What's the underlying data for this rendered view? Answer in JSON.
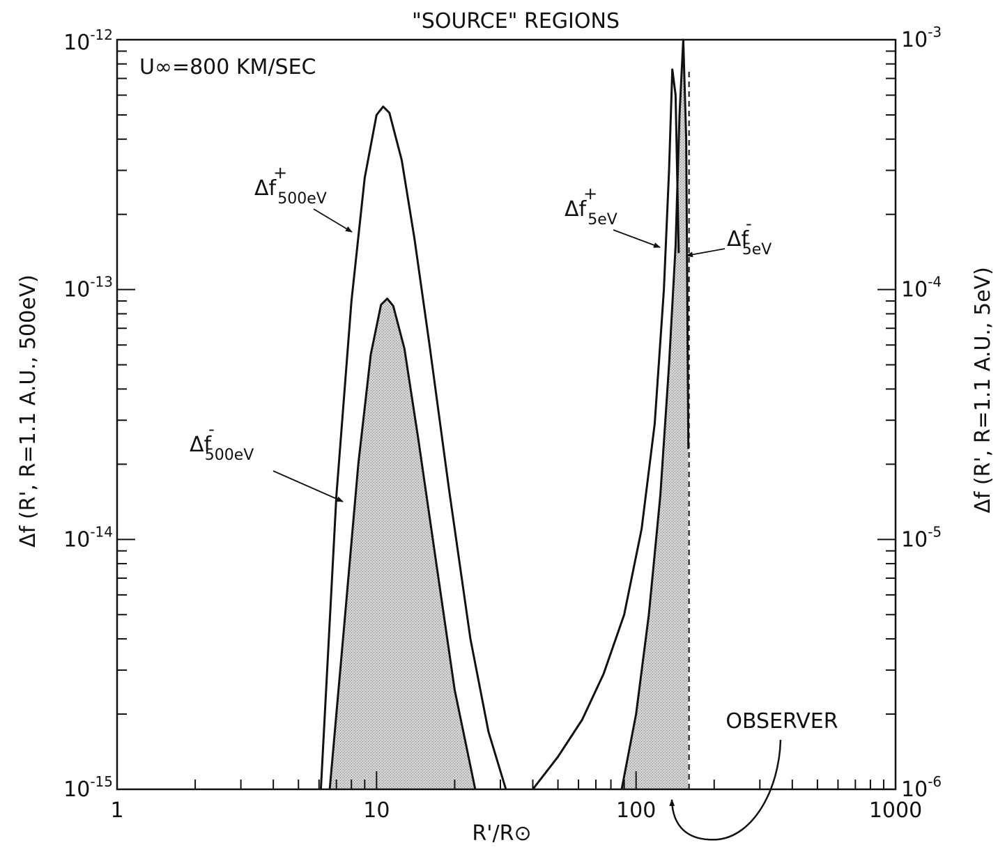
{
  "chart_data": {
    "type": "line",
    "title": "\"SOURCE\" REGIONS",
    "annotation": "U∞=800 KM/SEC",
    "xlabel": "R'/R⊙",
    "ylabel_left": "Δf (R', R=1.1 A.U., 500eV)",
    "ylabel_right": "Δf (R', R=1.1 A.U., 5eV)",
    "x_scale": "log",
    "y_scale": "log",
    "xlim": [
      1,
      1000
    ],
    "ylim_left": [
      1e-15,
      1e-12
    ],
    "ylim_right": [
      1e-06,
      0.001
    ],
    "x_ticks": [
      {
        "value": 1,
        "label": "1"
      },
      {
        "value": 10,
        "label": "10"
      },
      {
        "value": 100,
        "label": "100"
      },
      {
        "value": 1000,
        "label": "1000"
      }
    ],
    "y_ticks_left": [
      {
        "value": 1e-15,
        "base": "10",
        "exp": "-15"
      },
      {
        "value": 1e-14,
        "base": "10",
        "exp": "-14"
      },
      {
        "value": 1e-13,
        "base": "10",
        "exp": "-13"
      },
      {
        "value": 1e-12,
        "base": "10",
        "exp": "-12"
      }
    ],
    "y_ticks_right": [
      {
        "value": 1e-06,
        "base": "10",
        "exp": "-6"
      },
      {
        "value": 1e-05,
        "base": "10",
        "exp": "-5"
      },
      {
        "value": 0.0001,
        "base": "10",
        "exp": "-4"
      },
      {
        "value": 0.001,
        "base": "10",
        "exp": "-3"
      }
    ],
    "series": [
      {
        "name": "Δf+ 500eV",
        "label_main": "Δf",
        "label_sup": "+",
        "label_sub": "500eV",
        "axis": "left",
        "filled": false,
        "x": [
          6.1,
          7.0,
          8.0,
          9.0,
          10.0,
          10.6,
          11.2,
          12.5,
          14.0,
          16.0,
          19.0,
          23.0,
          27.0,
          31.5
        ],
        "y": [
          1e-15,
          1.5e-14,
          9e-14,
          2.8e-13,
          5e-13,
          5.4e-13,
          5.1e-13,
          3.3e-13,
          1.6e-13,
          6e-14,
          1.6e-14,
          4e-15,
          1.7e-15,
          1e-15
        ]
      },
      {
        "name": "Δf- 500eV",
        "label_main": "Δf",
        "label_sup": "-",
        "label_sub": "500eV",
        "axis": "left",
        "filled": true,
        "x": [
          6.6,
          7.5,
          8.5,
          9.5,
          10.4,
          11.0,
          11.6,
          12.8,
          14.5,
          17.0,
          20.0,
          24.0
        ],
        "y": [
          1e-15,
          4.5e-15,
          2e-14,
          5.5e-14,
          8.7e-14,
          9.2e-14,
          8.6e-14,
          5.8e-14,
          2.5e-14,
          8e-15,
          2.5e-15,
          1e-15
        ]
      },
      {
        "name": "Δf+ 5eV",
        "label_main": "Δf",
        "label_sup": "+",
        "label_sub": "5eV",
        "axis": "right",
        "filled": false,
        "x": [
          40,
          50,
          62,
          75,
          90,
          105,
          118,
          128,
          134,
          138,
          142,
          146
        ],
        "y": [
          1e-06,
          1.35e-06,
          1.9e-06,
          2.9e-06,
          5e-06,
          1.1e-05,
          2.9e-05,
          0.0001,
          0.0003,
          0.00076,
          0.0006,
          0.00014
        ]
      },
      {
        "name": "Δf- 5eV",
        "label_main": "Δf",
        "label_sup": "-",
        "label_sub": "5eV",
        "axis": "right",
        "filled": true,
        "x": [
          88,
          100,
          112,
          124,
          134,
          142,
          147,
          152,
          156,
          159
        ],
        "y": [
          1e-06,
          2e-06,
          5e-06,
          1.5e-05,
          5e-05,
          0.00015,
          0.0005,
          0.001,
          0.0004,
          2.3e-05
        ]
      }
    ],
    "observer": {
      "label": "OBSERVER",
      "x": 160
    }
  }
}
